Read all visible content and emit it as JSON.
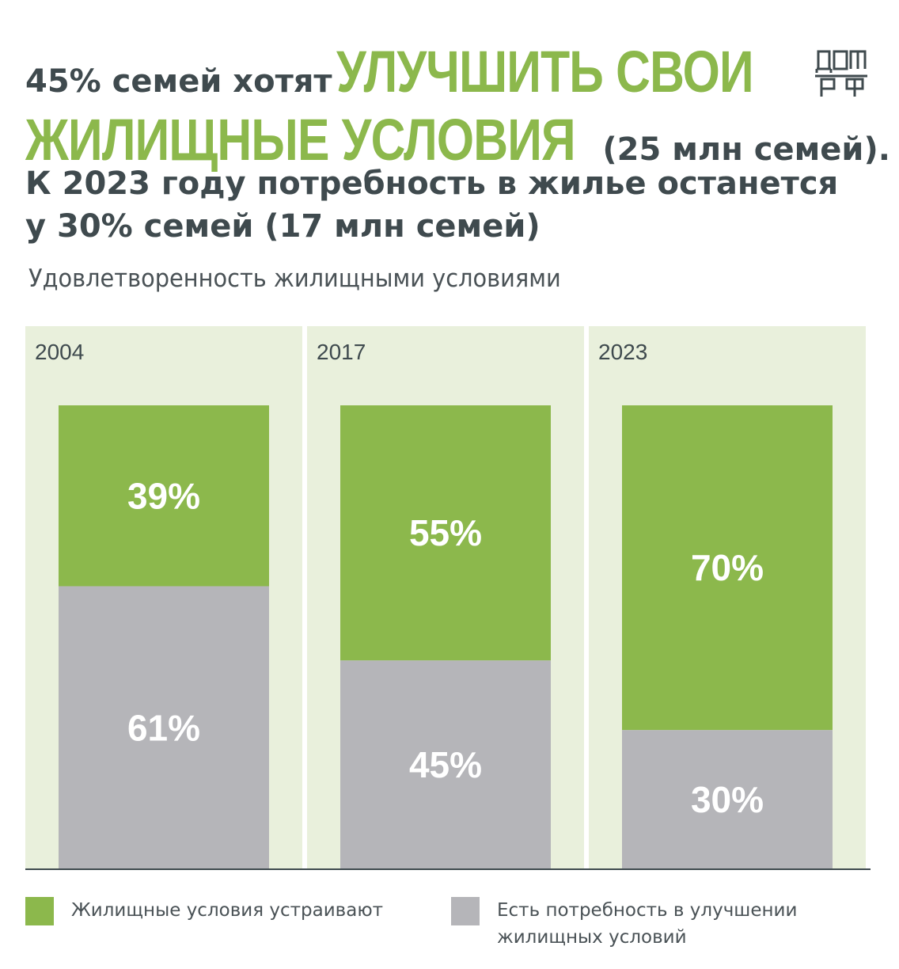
{
  "headline": {
    "part1": "45% семей хотят",
    "accent1": "УЛУЧШИТЬ СВОИ",
    "accent2": "ЖИЛИЩНЫЕ УСЛОВИЯ",
    "part2": "(25 млн семей).",
    "line3": "К 2023 году потребность в жилье останется",
    "line4": "у 30% семей (17 млн семей)"
  },
  "logo": {
    "top": "ДОМ",
    "bottom": "РФ"
  },
  "colors": {
    "accent": "#8cb84c",
    "panel": "#e9f0dc",
    "gray": "#b5b5b9",
    "text": "#3f4a4e",
    "axis": "#3f4a4e"
  },
  "chart_data": {
    "type": "bar",
    "stacked": true,
    "title": "Удовлетворенность жилищными условиями",
    "categories": [
      "2004",
      "2017",
      "2023"
    ],
    "series": [
      {
        "name": "Жилищные условия устраивают",
        "values": [
          39,
          55,
          70
        ],
        "labels": [
          "39%",
          "55%",
          "70%"
        ]
      },
      {
        "name": "Есть потребность в улучшении жилищных условий",
        "values": [
          61,
          45,
          30
        ],
        "labels": [
          "61%",
          "45%",
          "30%"
        ]
      }
    ],
    "ylim": [
      0,
      100
    ],
    "legend": "bottom"
  },
  "legend": {
    "item1": "Жилищные условия устраивают",
    "item2_line1": "Есть потребность в улучшении",
    "item2_line2": "жилищных условий"
  }
}
